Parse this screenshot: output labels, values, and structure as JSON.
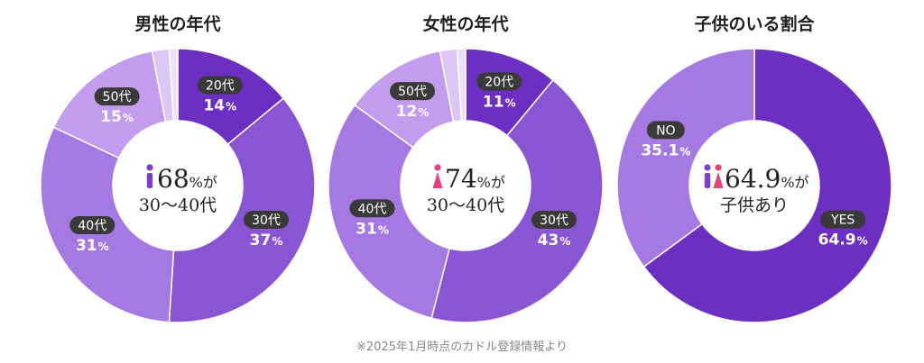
{
  "colors": {
    "slice_dark": "#6c2fc2",
    "slice_mid": "#8a55d3",
    "slice_light": "#a679e2",
    "slice_lighter": "#c39bef",
    "slice_lightest": "#dcc6f5",
    "slice_faint": "#ece0fa",
    "label_pill": "#3a3a3a",
    "male_icon": "#7b3fd0",
    "female_icon": "#e8407a"
  },
  "chart_data": [
    {
      "type": "pie",
      "title": "男性の年代",
      "slices": [
        {
          "name": "20代",
          "value": 14,
          "pct_text": "14",
          "color": "slice_dark",
          "labeled": true,
          "label_side": "right"
        },
        {
          "name": "30代",
          "value": 37,
          "pct_text": "37",
          "color": "slice_mid",
          "labeled": true,
          "label_side": "right"
        },
        {
          "name": "40代",
          "value": 31,
          "pct_text": "31",
          "color": "slice_light",
          "labeled": true,
          "label_side": "left"
        },
        {
          "name": "50代",
          "value": 15,
          "pct_text": "15",
          "color": "slice_lighter",
          "labeled": true,
          "label_side": "left"
        },
        {
          "name": "",
          "value": 2,
          "pct_text": "",
          "color": "slice_lightest",
          "labeled": false
        },
        {
          "name": "",
          "value": 1,
          "pct_text": "",
          "color": "slice_faint",
          "labeled": false
        }
      ],
      "center": {
        "icon": "male-icon",
        "big": "68",
        "unit": "%が",
        "line2": "30〜40代"
      }
    },
    {
      "type": "pie",
      "title": "女性の年代",
      "slices": [
        {
          "name": "20代",
          "value": 11,
          "pct_text": "11",
          "color": "slice_dark",
          "labeled": true,
          "label_side": "right"
        },
        {
          "name": "30代",
          "value": 43,
          "pct_text": "43",
          "color": "slice_mid",
          "labeled": true,
          "label_side": "right"
        },
        {
          "name": "40代",
          "value": 31,
          "pct_text": "31",
          "color": "slice_light",
          "labeled": true,
          "label_side": "left"
        },
        {
          "name": "50代",
          "value": 12,
          "pct_text": "12",
          "color": "slice_lighter",
          "labeled": true,
          "label_side": "left"
        },
        {
          "name": "",
          "value": 2,
          "pct_text": "",
          "color": "slice_lightest",
          "labeled": false
        },
        {
          "name": "",
          "value": 1,
          "pct_text": "",
          "color": "slice_faint",
          "labeled": false
        }
      ],
      "center": {
        "icon": "female-icon",
        "big": "74",
        "unit": "%が",
        "line2": "30〜40代"
      }
    },
    {
      "type": "pie",
      "title": "子供のいる割合",
      "slices": [
        {
          "name": "YES",
          "value": 64.9,
          "pct_text": "64.9",
          "color": "slice_dark",
          "labeled": true,
          "label_side": "right"
        },
        {
          "name": "NO",
          "value": 35.1,
          "pct_text": "35.1",
          "color": "slice_light",
          "labeled": true,
          "label_side": "left"
        }
      ],
      "center": {
        "icon": "couple-icon",
        "big": "64.9",
        "unit": "%が",
        "line2": "子供あり"
      }
    }
  ],
  "footnote": "※2025年1月時点のカドル登録情報より"
}
